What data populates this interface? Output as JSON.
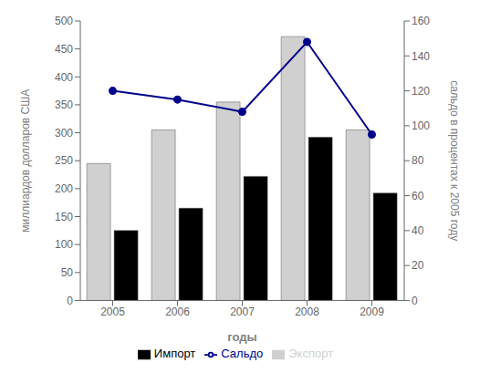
{
  "chart_data": {
    "type": "bar",
    "categories": [
      "2005",
      "2006",
      "2007",
      "2008",
      "2009"
    ],
    "x_label": "годы",
    "y_label": "миллиардов долларов США",
    "y2_label": "сальдо в процентах к 2005 году",
    "series": [
      {
        "name": "Экспорт",
        "color": "#d0d0d0",
        "values": [
          245,
          305,
          355,
          472,
          305
        ]
      },
      {
        "name": "Импорт",
        "color": "#000000",
        "values": [
          125,
          165,
          222,
          292,
          192
        ]
      },
      {
        "name": "Сальдо",
        "type": "line",
        "axis": "y2",
        "color": "#00008B",
        "marker": "circle",
        "values": [
          120,
          115,
          108,
          148,
          95
        ]
      }
    ],
    "ylim": [
      0,
      500
    ],
    "yticks": [
      0,
      50,
      100,
      150,
      200,
      250,
      300,
      350,
      400,
      450,
      500
    ],
    "y2lim": [
      0,
      160
    ],
    "y2ticks": [
      0,
      20,
      40,
      60,
      80,
      100,
      120,
      140,
      160
    ],
    "grid": false,
    "legend": "bottom"
  }
}
